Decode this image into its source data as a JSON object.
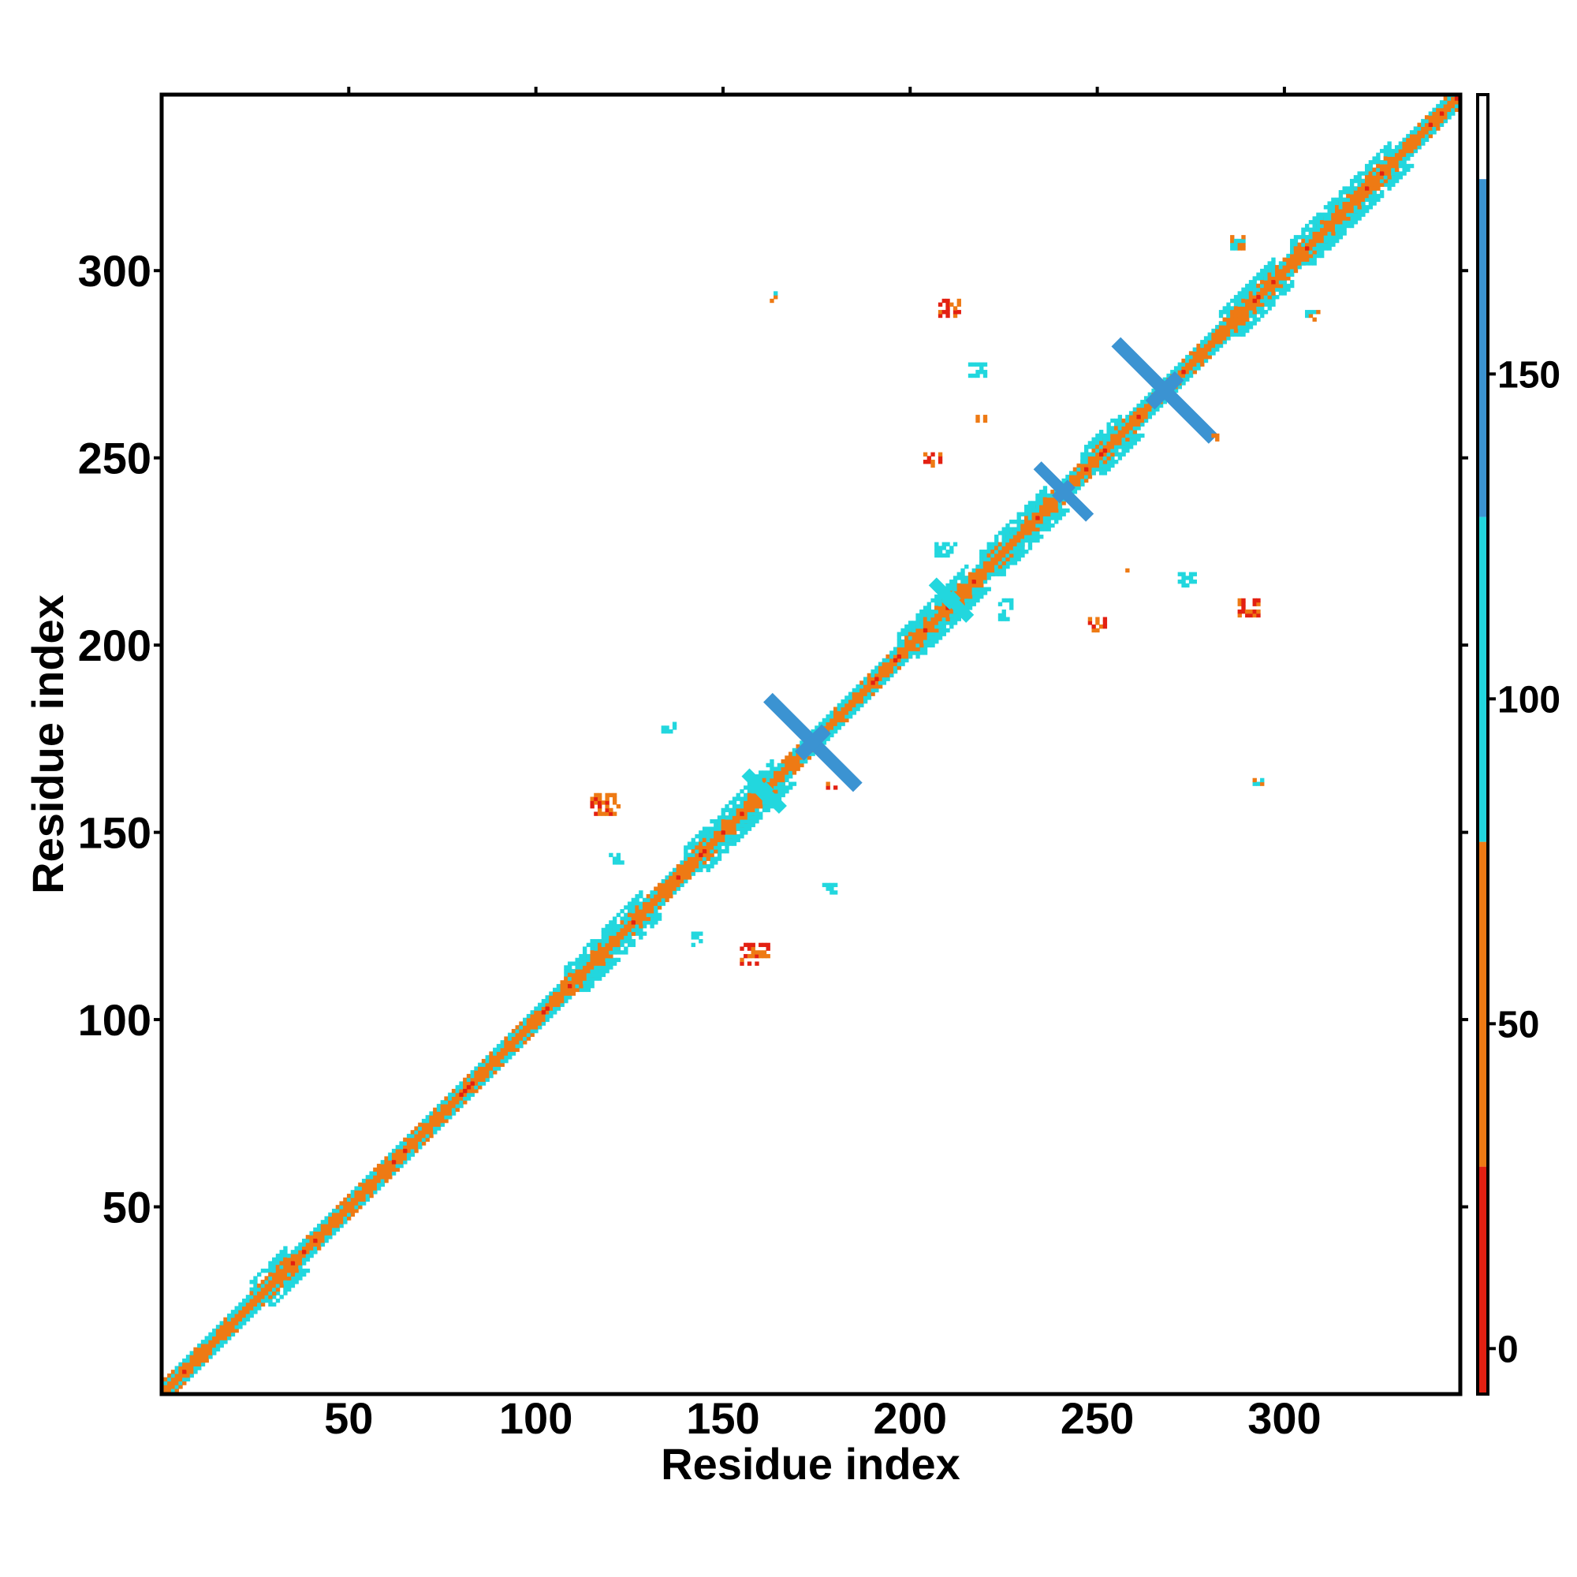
{
  "chart_data": {
    "type": "heatmap",
    "title": "",
    "xlabel": "Residue index",
    "ylabel": "Residue index",
    "xlim": [
      0,
      347
    ],
    "ylim": [
      0,
      347
    ],
    "x_ticks": [
      50,
      100,
      150,
      200,
      250,
      300
    ],
    "y_ticks": [
      50,
      100,
      150,
      200,
      250,
      300
    ],
    "colorbar": {
      "ticks": [
        0,
        50,
        100,
        150
      ],
      "range": [
        -7,
        193
      ],
      "bands": [
        {
          "from": -7,
          "to": 28,
          "color": "#e32012"
        },
        {
          "from": 28,
          "to": 78,
          "color": "#ee7a14"
        },
        {
          "from": 78,
          "to": 128,
          "color": "#22d7de"
        },
        {
          "from": 128,
          "to": 180,
          "color": "#3b93d2"
        },
        {
          "from": 180,
          "to": 193,
          "color": "#ffffff"
        }
      ]
    },
    "diagonal": {
      "from": 1,
      "to": 347
    },
    "helix_blocks": [
      {
        "from": 108,
        "to": 128
      },
      {
        "from": 140,
        "to": 163
      },
      {
        "from": 197,
        "to": 215
      },
      {
        "from": 219,
        "to": 236
      },
      {
        "from": 246,
        "to": 256
      },
      {
        "from": 283,
        "to": 297
      },
      {
        "from": 302,
        "to": 328
      },
      {
        "from": 24,
        "to": 33
      }
    ],
    "crosses": [
      {
        "center": [
          174,
          174
        ],
        "half_length": 12,
        "width": 3.5,
        "color": "#3b93d2"
      },
      {
        "center": [
          268,
          268
        ],
        "half_length": 13,
        "width": 3.5,
        "color": "#3b93d2"
      },
      {
        "center": [
          241,
          241
        ],
        "half_length": 7,
        "width": 3,
        "color": "#3b93d2"
      },
      {
        "center": [
          161,
          161
        ],
        "half_length": 5,
        "width": 3,
        "color": "#22d7de"
      },
      {
        "center": [
          211,
          212
        ],
        "half_length": 5,
        "width": 3,
        "color": "#22d7de"
      }
    ],
    "off_diagonal_clusters": [
      {
        "x": 115,
        "y": 155,
        "w": 8,
        "h": 6,
        "colors": [
          "#ee7a14",
          "#e32012"
        ]
      },
      {
        "x": 155,
        "y": 115,
        "w": 8,
        "h": 6,
        "colors": [
          "#ee7a14",
          "#e32012"
        ]
      },
      {
        "x": 134,
        "y": 177,
        "w": 4,
        "h": 3,
        "colors": [
          "#22d7de"
        ]
      },
      {
        "x": 177,
        "y": 134,
        "w": 4,
        "h": 3,
        "colors": [
          "#22d7de"
        ]
      },
      {
        "x": 208,
        "y": 288,
        "w": 6,
        "h": 5,
        "colors": [
          "#ee7a14",
          "#e32012"
        ]
      },
      {
        "x": 288,
        "y": 208,
        "w": 6,
        "h": 5,
        "colors": [
          "#ee7a14",
          "#e32012"
        ]
      },
      {
        "x": 216,
        "y": 272,
        "w": 5,
        "h": 4,
        "colors": [
          "#22d7de"
        ]
      },
      {
        "x": 272,
        "y": 216,
        "w": 5,
        "h": 4,
        "colors": [
          "#22d7de"
        ]
      },
      {
        "x": 204,
        "y": 248,
        "w": 5,
        "h": 4,
        "colors": [
          "#ee7a14",
          "#e32012"
        ]
      },
      {
        "x": 248,
        "y": 204,
        "w": 5,
        "h": 4,
        "colors": [
          "#ee7a14",
          "#e32012"
        ]
      },
      {
        "x": 163,
        "y": 292,
        "w": 2,
        "h": 4,
        "colors": [
          "#22d7de",
          "#ee7a14"
        ]
      },
      {
        "x": 292,
        "y": 163,
        "w": 3,
        "h": 2,
        "colors": [
          "#22d7de",
          "#ee7a14"
        ]
      },
      {
        "x": 218,
        "y": 260,
        "w": 3,
        "h": 2,
        "colors": [
          "#ee7a14"
        ]
      },
      {
        "x": 257,
        "y": 218,
        "w": 2,
        "h": 3,
        "colors": [
          "#ee7a14"
        ]
      },
      {
        "x": 207,
        "y": 224,
        "w": 6,
        "h": 4,
        "colors": [
          "#22d7de"
        ]
      },
      {
        "x": 224,
        "y": 207,
        "w": 4,
        "h": 6,
        "colors": [
          "#22d7de"
        ]
      },
      {
        "x": 120,
        "y": 142,
        "w": 4,
        "h": 3,
        "colors": [
          "#22d7de"
        ]
      },
      {
        "x": 142,
        "y": 120,
        "w": 3,
        "h": 4,
        "colors": [
          "#22d7de"
        ]
      },
      {
        "x": 286,
        "y": 306,
        "w": 4,
        "h": 4,
        "colors": [
          "#22d7de",
          "#ee7a14"
        ]
      },
      {
        "x": 306,
        "y": 286,
        "w": 4,
        "h": 4,
        "colors": [
          "#22d7de",
          "#ee7a14"
        ]
      },
      {
        "x": 281,
        "y": 255,
        "w": 2,
        "h": 2,
        "colors": [
          "#ee7a14"
        ]
      },
      {
        "x": 178,
        "y": 162,
        "w": 3,
        "h": 2,
        "colors": [
          "#e32012",
          "#ee7a14"
        ]
      }
    ]
  }
}
